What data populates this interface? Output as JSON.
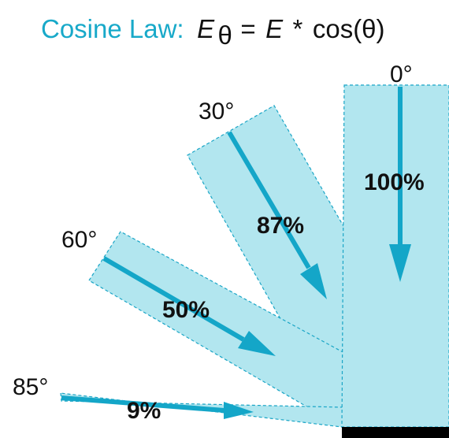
{
  "title": {
    "prefix": "Cosine Law:",
    "E_theta": "E",
    "theta_sub": "θ",
    "equals": "=",
    "E": "E",
    "times": "*",
    "cos": "cos(θ)"
  },
  "beams": [
    {
      "angle_label": "0°",
      "percent_label": "100%"
    },
    {
      "angle_label": "30°",
      "percent_label": "87%"
    },
    {
      "angle_label": "60°",
      "percent_label": "50%"
    },
    {
      "angle_label": "85°",
      "percent_label": "9%"
    }
  ],
  "colors": {
    "title": "#18a9c9",
    "beam_fill": "#b2e6ef",
    "beam_edge": "#1aa5c6",
    "arrow": "#14a6c8",
    "surface": "#000000",
    "text": "#111111"
  }
}
